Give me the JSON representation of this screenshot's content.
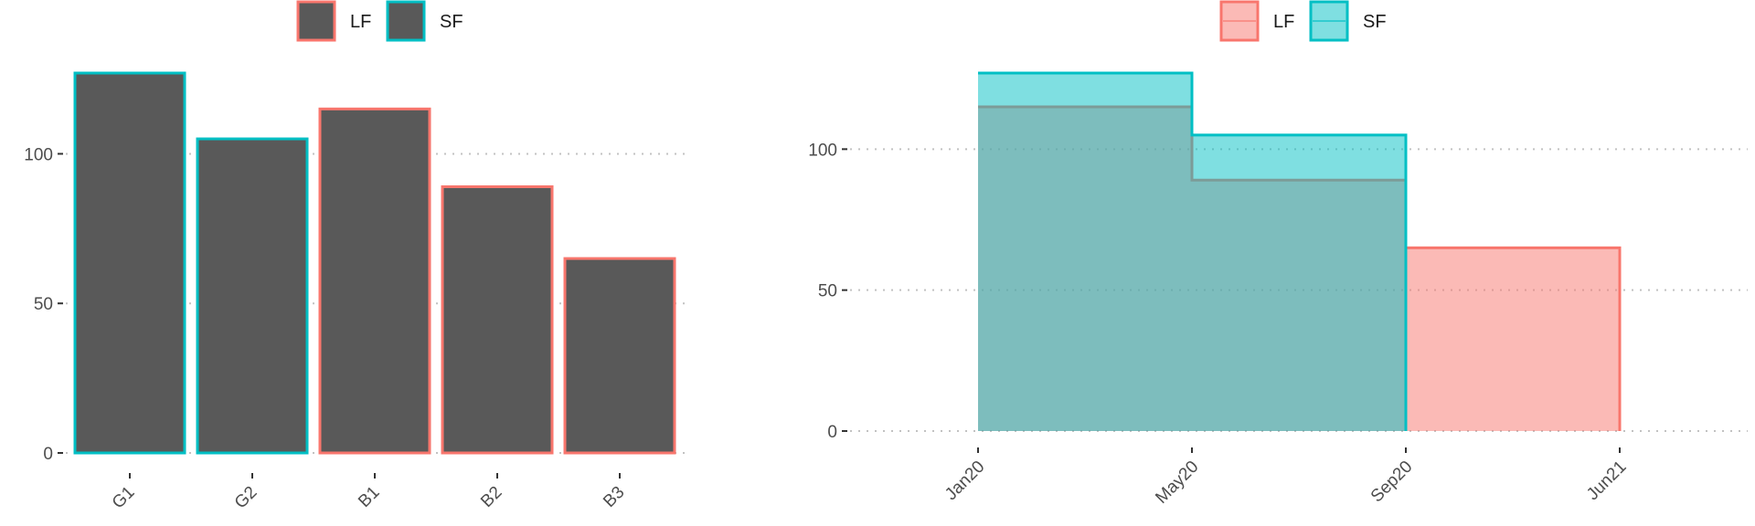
{
  "chart_data": [
    {
      "type": "bar",
      "categories": [
        "G1",
        "G2",
        "B1",
        "B2",
        "B3"
      ],
      "values": [
        127,
        105,
        115,
        89,
        65
      ],
      "outline_groups": [
        "SF",
        "SF",
        "LF",
        "LF",
        "LF"
      ],
      "fill_color": "#595959",
      "legend": [
        {
          "label": "LF",
          "color": "#f8766d"
        },
        {
          "label": "SF",
          "color": "#00bfc4"
        }
      ],
      "legend_position": "top",
      "ylim": [
        0,
        130
      ],
      "yticks": [
        0,
        50,
        100
      ],
      "grid": "horizontal dotted",
      "xlabel": "",
      "ylabel": ""
    },
    {
      "type": "area",
      "step": true,
      "x_ticks": [
        "Jan20",
        "May20",
        "Sep20",
        "Jun21"
      ],
      "series": [
        {
          "name": "LF",
          "color": "#f8766d",
          "fill": "#f8766d",
          "x": [
            "Jan20",
            "May20",
            "Sep20"
          ],
          "y": [
            115,
            89,
            65
          ],
          "x_end": "Jun21"
        },
        {
          "name": "SF",
          "color": "#00bfc4",
          "fill": "#00bfc4",
          "x": [
            "Jan20",
            "May20"
          ],
          "y": [
            127,
            105
          ],
          "x_end": "Sep20"
        }
      ],
      "legend_position": "top",
      "ylim": [
        0,
        130
      ],
      "yticks": [
        0,
        50,
        100
      ],
      "grid": "horizontal dotted",
      "xlabel": "",
      "ylabel": ""
    }
  ]
}
